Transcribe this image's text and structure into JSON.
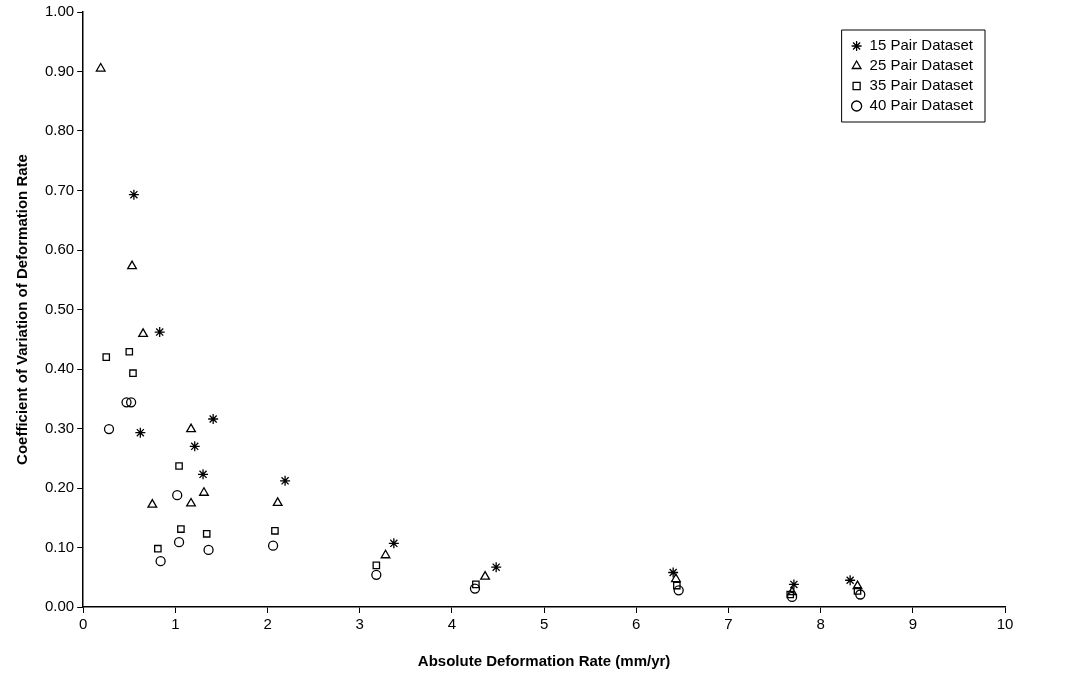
{
  "chart_data": {
    "type": "scatter",
    "xlabel": "Absolute Deformation Rate (mm/yr)",
    "ylabel": "Coefficient of Variation of Deformation Rate",
    "xlim": [
      0,
      10
    ],
    "xticks": [
      0,
      1,
      2,
      3,
      4,
      5,
      6,
      7,
      8,
      9,
      10
    ],
    "ylim": [
      0,
      1
    ],
    "yticks": [
      {
        "value": 0,
        "label": "0.00"
      },
      {
        "value": 0.1,
        "label": "0.10"
      },
      {
        "value": 0.2,
        "label": "0.20"
      },
      {
        "value": 0.3,
        "label": "0.30"
      },
      {
        "value": 0.4,
        "label": "0.40"
      },
      {
        "value": 0.5,
        "label": "0.50"
      },
      {
        "value": 0.6,
        "label": "0.60"
      },
      {
        "value": 0.7,
        "label": "0.70"
      },
      {
        "value": 0.8,
        "label": "0.80"
      },
      {
        "value": 0.9,
        "label": "0.90"
      },
      {
        "value": 1,
        "label": "1.00"
      }
    ],
    "grid": false,
    "legend": "top right",
    "series": [
      {
        "name": "15 Pair Dataset",
        "color": "#000000",
        "marker": "cross",
        "x": [
          0.55,
          0.83,
          1.41,
          0.62,
          1.21,
          1.3,
          2.19,
          3.37,
          4.48,
          6.4,
          7.71,
          8.32
        ],
        "values": [
          0.693,
          0.462,
          0.316,
          0.293,
          0.27,
          0.223,
          0.212,
          0.107,
          0.067,
          0.058,
          0.038,
          0.045
        ]
      },
      {
        "name": "25 Pair Dataset",
        "color": "#000000",
        "marker": "triangle",
        "x": [
          0.19,
          0.53,
          0.65,
          1.17,
          0.75,
          1.17,
          1.31,
          2.11,
          3.28,
          4.36,
          6.43,
          7.69,
          8.4
        ],
        "values": [
          0.905,
          0.573,
          0.459,
          0.299,
          0.172,
          0.174,
          0.192,
          0.175,
          0.087,
          0.051,
          0.047,
          0.025,
          0.035
        ]
      },
      {
        "name": "35 Pair Dataset",
        "color": "#000000",
        "marker": "square",
        "x": [
          0.25,
          0.5,
          0.54,
          1.04,
          0.81,
          1.06,
          1.34,
          2.08,
          3.18,
          4.26,
          6.44,
          7.67,
          8.4
        ],
        "values": [
          0.42,
          0.429,
          0.393,
          0.237,
          0.098,
          0.131,
          0.123,
          0.128,
          0.07,
          0.038,
          0.036,
          0.021,
          0.027
        ]
      },
      {
        "name": "40 Pair Dataset",
        "color": "#000000",
        "marker": "circle",
        "x": [
          0.28,
          0.47,
          0.52,
          1.02,
          0.84,
          1.04,
          1.36,
          2.06,
          3.18,
          4.25,
          6.46,
          7.69,
          8.43
        ],
        "values": [
          0.299,
          0.344,
          0.344,
          0.188,
          0.077,
          0.109,
          0.096,
          0.103,
          0.054,
          0.031,
          0.028,
          0.017,
          0.021
        ]
      }
    ]
  }
}
